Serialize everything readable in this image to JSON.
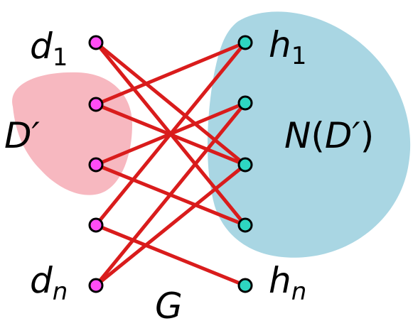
{
  "labels": {
    "d": {
      "base": "d",
      "sub": "1"
    },
    "dn": {
      "base": "d",
      "sub": "n"
    },
    "h": {
      "base": "h",
      "sub": "1"
    },
    "hn": {
      "base": "h",
      "sub": "n"
    },
    "subset": "D′",
    "neighborhood": {
      "fn": "N",
      "open": "(",
      "arg": "D′",
      "close": ")"
    },
    "graph": "G"
  },
  "colors": {
    "left_node": "#ff4df5",
    "right_node": "#2ed6c1",
    "edge": "#d91c1c",
    "subset_region": "#f7b8c0",
    "neighborhood_region": "#a9d6e3"
  },
  "graph": {
    "left_nodes": [
      "d1",
      "d2",
      "d3",
      "d4",
      "dn"
    ],
    "right_nodes": [
      "h1",
      "h2",
      "h3",
      "h4",
      "hn"
    ],
    "edges": [
      [
        "d1",
        "h3"
      ],
      [
        "d1",
        "h4"
      ],
      [
        "d2",
        "h1"
      ],
      [
        "d2",
        "h3"
      ],
      [
        "d3",
        "h2"
      ],
      [
        "d3",
        "h4"
      ],
      [
        "d4",
        "h1"
      ],
      [
        "d4",
        "hn"
      ],
      [
        "dn",
        "h2"
      ],
      [
        "dn",
        "h3"
      ]
    ]
  }
}
